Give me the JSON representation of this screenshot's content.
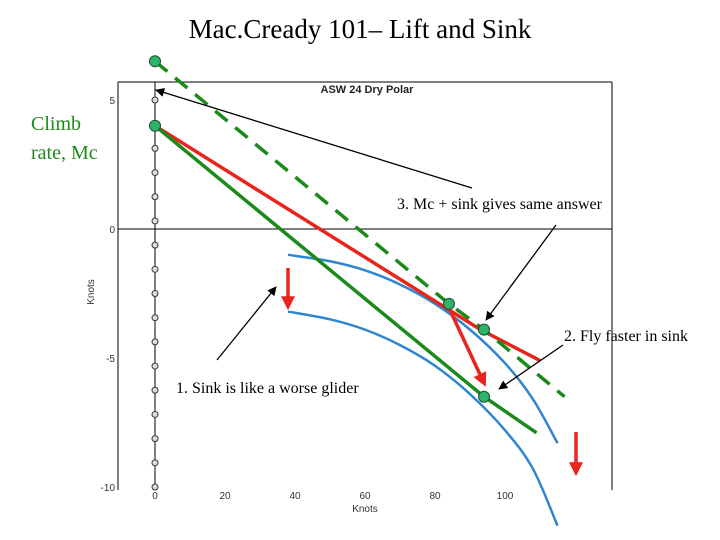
{
  "slide": {
    "title": "Mac.Cready 101– Lift and Sink",
    "climb_label_line1": "Climb",
    "climb_label_line2": "rate, Mc",
    "annotations": [
      "3. Mc + sink gives same answer",
      "2. Fly faster in sink",
      "1. Sink is like a worse glider"
    ]
  },
  "chart_data": {
    "type": "line",
    "title": "ASW 24 Dry Polar",
    "xlabel": "Knots",
    "ylabel": "Knots",
    "xlim": [
      0,
      115
    ],
    "ylim": [
      -10,
      5
    ],
    "x_ticks": [
      0,
      20,
      40,
      60,
      80,
      100
    ],
    "y_ticks": [
      5,
      0,
      -5,
      -10
    ],
    "series": [
      {
        "values": [
          [
            38,
            -1.0
          ],
          [
            50,
            -1.25
          ],
          [
            60,
            -1.6
          ],
          [
            70,
            -2.15
          ],
          [
            80,
            -2.9
          ],
          [
            90,
            -3.9
          ],
          [
            100,
            -5.2
          ],
          [
            108,
            -6.6
          ],
          [
            115,
            -8.3
          ]
        ]
      },
      {
        "values": [
          [
            38,
            -3.2
          ],
          [
            50,
            -3.5
          ],
          [
            60,
            -3.9
          ],
          [
            70,
            -4.5
          ],
          [
            80,
            -5.3
          ],
          [
            90,
            -6.4
          ],
          [
            100,
            -7.8
          ],
          [
            108,
            -9.3
          ],
          [
            115,
            -11.5
          ]
        ]
      }
    ],
    "tangent_lines": [
      {
        "values": [
          [
            0,
            4
          ],
          [
            93,
            -3.9
          ],
          [
            110,
            -5.1
          ]
        ]
      },
      {
        "values": [
          [
            0,
            4
          ],
          [
            94,
            -6.5
          ],
          [
            109,
            -7.9
          ]
        ]
      },
      {
        "values": [
          [
            0,
            6.5
          ],
          [
            84,
            -2.9
          ],
          [
            94,
            -3.9
          ],
          [
            117,
            -6.5
          ]
        ]
      }
    ],
    "key_points": [
      [
        0,
        6.5
      ],
      [
        0,
        4
      ],
      [
        84,
        -2.9
      ],
      [
        94,
        -3.9
      ],
      [
        94,
        -6.5
      ]
    ]
  }
}
